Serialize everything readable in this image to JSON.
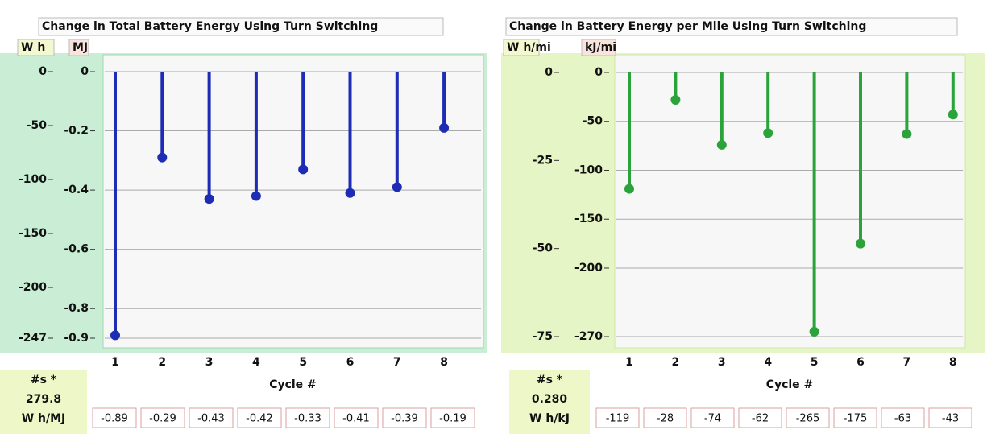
{
  "chart_data": [
    {
      "type": "stem",
      "title": "Change in Total Battery Energy Using Turn Switching",
      "ylabel": "MJ",
      "y2label": "W h",
      "xlabel": "Cycle #",
      "categories": [
        "1",
        "2",
        "3",
        "4",
        "5",
        "6",
        "7",
        "8"
      ],
      "values": [
        -0.89,
        -0.29,
        -0.43,
        -0.42,
        -0.33,
        -0.41,
        -0.39,
        -0.19
      ],
      "color": "#1c2cb4",
      "ylim": [
        -0.9,
        0
      ],
      "yticks": [
        0,
        -0.2,
        -0.4,
        -0.6,
        -0.8,
        -0.9
      ],
      "y2lim": [
        -247,
        0
      ],
      "y2ticks": [
        0,
        -50,
        -100,
        -150,
        -200,
        -247
      ],
      "grid": true,
      "scale_note": [
        "#s *",
        "279.8",
        "W h/MJ"
      ]
    },
    {
      "type": "stem",
      "title": "Change in Battery Energy per Mile Using Turn Switching",
      "ylabel": "kJ/mi",
      "y2label": "W h/mi",
      "xlabel": "Cycle #",
      "categories": [
        "1",
        "2",
        "3",
        "4",
        "5",
        "6",
        "7",
        "8"
      ],
      "values": [
        -119,
        -28,
        -74,
        -62,
        -265,
        -175,
        -63,
        -43
      ],
      "color": "#2aa43a",
      "ylim": [
        -270,
        0
      ],
      "yticks": [
        0,
        -50,
        -100,
        -150,
        -200,
        -270
      ],
      "y2lim": [
        -75,
        0
      ],
      "y2ticks": [
        0,
        -25,
        -50,
        -75
      ],
      "grid": true,
      "scale_note": [
        "#s *",
        "0.280",
        "W h/kJ"
      ]
    }
  ]
}
